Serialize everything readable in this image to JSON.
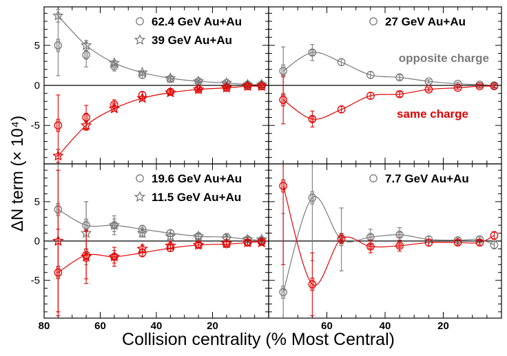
{
  "figure": {
    "ylabel": "ΔN term (× 10⁴)",
    "xlabel": "Collision centrality (% Most Central)"
  },
  "colors": {
    "opposite": "#7a7a7a",
    "same": "#e00000",
    "axis": "#000000"
  },
  "chart_data": [
    {
      "type": "scatter",
      "panel": "top-left",
      "xlim": [
        80,
        0
      ],
      "ylim": [
        -9.8,
        9.8
      ],
      "xticks": [],
      "yticks": [
        "5",
        "0",
        "-5"
      ],
      "legend": [
        {
          "label": "62.4 GeV Au+Au",
          "marker": "circle"
        },
        {
          "label": "39 GeV Au+Au",
          "marker": "star"
        }
      ],
      "annotations": [],
      "series": [
        {
          "charge": "opposite",
          "marker": "circle",
          "x": [
            75,
            65,
            55,
            45,
            35,
            25,
            15,
            7.5,
            2.5
          ],
          "y": [
            5.0,
            3.8,
            2.4,
            1.3,
            0.8,
            0.5,
            0.3,
            0.1,
            0.1
          ],
          "err": [
            3.8,
            1.5,
            0.6,
            0.4,
            0.3,
            0.2,
            0.2,
            0.15,
            0.15
          ]
        },
        {
          "charge": "opposite",
          "marker": "star",
          "x": [
            75,
            65,
            55,
            45,
            35,
            25,
            15,
            7.5,
            2.5
          ],
          "y": [
            8.7,
            5.0,
            2.8,
            1.6,
            0.9,
            0.5,
            0.3,
            0.1,
            0.1
          ],
          "err": [
            0.8,
            0.6,
            0.3,
            0.2,
            0.15,
            0.1,
            0.1,
            0.1,
            0.1
          ]
        },
        {
          "charge": "same",
          "marker": "circle",
          "x": [
            75,
            65,
            55,
            45,
            35,
            25,
            15,
            7.5,
            2.5
          ],
          "y": [
            -5.0,
            -4.0,
            -2.4,
            -1.2,
            -0.8,
            -0.5,
            -0.3,
            -0.1,
            -0.1
          ],
          "err": [
            3.8,
            1.5,
            0.6,
            0.4,
            0.3,
            0.2,
            0.2,
            0.15,
            0.15
          ]
        },
        {
          "charge": "same",
          "marker": "star",
          "x": [
            75,
            65,
            55,
            45,
            35,
            25,
            15,
            7.5,
            2.5
          ],
          "y": [
            -8.8,
            -5.0,
            -2.9,
            -1.6,
            -0.9,
            -0.5,
            -0.3,
            -0.1,
            -0.1
          ],
          "err": [
            0.8,
            0.6,
            0.3,
            0.2,
            0.15,
            0.1,
            0.1,
            0.1,
            0.1
          ]
        }
      ],
      "curves": [
        {
          "charge": "opposite",
          "x": [
            75,
            65,
            55,
            45,
            35,
            25,
            15,
            7.5,
            2.5
          ],
          "y": [
            8.7,
            5.0,
            2.8,
            1.6,
            0.9,
            0.5,
            0.3,
            0.1,
            0.1
          ]
        },
        {
          "charge": "same",
          "x": [
            75,
            65,
            55,
            45,
            35,
            25,
            15,
            7.5,
            2.5
          ],
          "y": [
            -8.8,
            -5.0,
            -2.9,
            -1.6,
            -0.9,
            -0.5,
            -0.3,
            -0.1,
            -0.1
          ]
        }
      ]
    },
    {
      "type": "scatter",
      "panel": "top-right",
      "xlim": [
        80,
        0
      ],
      "ylim": [
        -9.8,
        9.8
      ],
      "xticks": [],
      "yticks": [],
      "legend": [
        {
          "label": "27 GeV Au+Au",
          "marker": "circle"
        }
      ],
      "annotations": [
        {
          "text": "opposite charge",
          "charge": "opposite"
        },
        {
          "text": "same charge",
          "charge": "same"
        }
      ],
      "series": [
        {
          "charge": "opposite",
          "marker": "circle",
          "x": [
            75,
            65,
            55,
            45,
            35,
            25,
            15,
            7.5,
            2.5
          ],
          "y": [
            1.8,
            4.1,
            2.9,
            1.3,
            1.0,
            0.5,
            0.2,
            0.1,
            0.0
          ],
          "err": [
            3.0,
            1.0,
            0.4,
            0.4,
            0.3,
            0.2,
            0.2,
            0.2,
            0.2
          ]
        },
        {
          "charge": "same",
          "marker": "circle",
          "x": [
            75,
            65,
            55,
            45,
            35,
            25,
            15,
            7.5,
            2.5
          ],
          "y": [
            -1.8,
            -4.2,
            -3.0,
            -1.3,
            -1.1,
            -0.5,
            -0.3,
            -0.1,
            -0.1
          ],
          "err": [
            3.0,
            1.0,
            0.4,
            0.4,
            0.3,
            0.2,
            0.2,
            0.2,
            0.2
          ]
        }
      ],
      "curves": [
        {
          "charge": "opposite",
          "x": [
            75,
            65,
            55,
            45,
            35,
            25,
            15,
            7.5,
            2.5
          ],
          "y": [
            1.8,
            4.1,
            2.9,
            1.3,
            1.0,
            0.5,
            0.2,
            0.1,
            0.0
          ]
        },
        {
          "charge": "same",
          "x": [
            75,
            65,
            55,
            45,
            35,
            25,
            15,
            7.5,
            2.5
          ],
          "y": [
            -1.8,
            -4.2,
            -3.0,
            -1.3,
            -1.1,
            -0.5,
            -0.3,
            -0.1,
            -0.1
          ]
        }
      ]
    },
    {
      "type": "scatter",
      "panel": "bottom-left",
      "xlim": [
        80,
        0
      ],
      "ylim": [
        -9.8,
        9.8
      ],
      "xticks": [
        "80",
        "60",
        "40",
        "20"
      ],
      "yticks": [
        "5",
        "0",
        "-5"
      ],
      "legend": [
        {
          "label": "19.6 GeV Au+Au",
          "marker": "circle"
        },
        {
          "label": "11.5 GeV Au+Au",
          "marker": "star"
        }
      ],
      "annotations": [],
      "series": [
        {
          "charge": "opposite",
          "marker": "circle",
          "x": [
            75,
            65,
            55,
            45,
            35,
            25,
            15,
            7.5,
            2.5
          ],
          "y": [
            4.0,
            2.0,
            2.0,
            1.5,
            1.0,
            0.6,
            0.5,
            0.2,
            0.1
          ],
          "err": [
            8.0,
            3.0,
            0.8,
            0.5,
            0.4,
            0.3,
            0.3,
            0.3,
            0.3
          ]
        },
        {
          "charge": "opposite",
          "marker": "star",
          "x": [
            75,
            65,
            55,
            45,
            35,
            25,
            15,
            7.5,
            2.5
          ],
          "y": [
            0.0,
            1.0,
            2.0,
            1.0,
            0.6,
            0.6,
            0.3,
            0.2,
            0.2
          ],
          "err": [
            9.0,
            4.0,
            1.2,
            0.5,
            0.4,
            0.3,
            0.3,
            0.3,
            0.3
          ]
        },
        {
          "charge": "same",
          "marker": "circle",
          "x": [
            75,
            65,
            55,
            45,
            35,
            25,
            15,
            7.5,
            2.5
          ],
          "y": [
            -4.0,
            -1.8,
            -2.0,
            -1.5,
            -0.9,
            -0.5,
            -0.4,
            -0.2,
            -0.1
          ],
          "err": [
            5.5,
            3.0,
            0.8,
            0.5,
            0.4,
            0.3,
            0.3,
            0.3,
            0.3
          ]
        },
        {
          "charge": "same",
          "marker": "star",
          "x": [
            75,
            65,
            55,
            45,
            35,
            25,
            15,
            7.5,
            2.5
          ],
          "y": [
            0.0,
            -2.0,
            -2.0,
            -1.0,
            -0.6,
            -0.5,
            -0.3,
            -0.2,
            -0.2
          ],
          "err": [
            9.0,
            3.4,
            1.2,
            0.5,
            0.4,
            0.3,
            0.3,
            0.3,
            0.3
          ]
        }
      ],
      "curves": [
        {
          "charge": "opposite",
          "x": [
            75,
            65,
            55,
            45,
            35,
            25,
            15,
            7.5,
            2.5
          ],
          "y": [
            4.0,
            2.0,
            2.0,
            1.5,
            1.0,
            0.6,
            0.5,
            0.2,
            0.1
          ]
        },
        {
          "charge": "same",
          "x": [
            75,
            65,
            55,
            45,
            35,
            25,
            15,
            7.5,
            2.5
          ],
          "y": [
            -4.0,
            -1.8,
            -2.0,
            -1.5,
            -0.9,
            -0.5,
            -0.4,
            -0.2,
            -0.1
          ]
        }
      ]
    },
    {
      "type": "scatter",
      "panel": "bottom-right",
      "xlim": [
        80,
        0
      ],
      "ylim": [
        -9.8,
        9.8
      ],
      "xticks": [
        "60",
        "40",
        "20"
      ],
      "yticks": [],
      "legend": [
        {
          "label": "7.7 GeV Au+Au",
          "marker": "circle"
        }
      ],
      "annotations": [],
      "series": [
        {
          "charge": "opposite",
          "marker": "circle",
          "x": [
            75,
            65,
            55,
            45,
            35,
            25,
            15,
            7.5,
            2.5
          ],
          "y": [
            -6.5,
            5.5,
            0.2,
            0.5,
            0.8,
            0.2,
            0.1,
            0.2,
            -0.5
          ],
          "err": [
            10,
            8.0,
            4.0,
            1.0,
            0.9,
            0.4,
            0.3,
            0.3,
            0.5
          ]
        },
        {
          "charge": "same",
          "marker": "circle",
          "x": [
            75,
            65,
            55,
            45,
            35,
            25,
            15,
            7.5,
            2.5
          ],
          "y": [
            7.0,
            -5.5,
            0.3,
            -0.7,
            -0.6,
            -0.2,
            -0.2,
            -0.2,
            0.7
          ],
          "err": [
            10,
            4.0,
            0.6,
            0.8,
            0.7,
            0.4,
            0.3,
            0.3,
            0.5
          ]
        }
      ],
      "curves": [
        {
          "charge": "opposite",
          "x": [
            75,
            65,
            55,
            45,
            35,
            25,
            15,
            7.5,
            2.5
          ],
          "y": [
            -6.5,
            5.5,
            0.2,
            0.5,
            0.8,
            0.2,
            0.1,
            0.2,
            -0.5
          ]
        },
        {
          "charge": "same",
          "x": [
            75,
            65,
            55,
            45,
            35,
            25,
            15,
            7.5,
            2.5
          ],
          "y": [
            7.0,
            -5.5,
            0.3,
            -0.7,
            -0.6,
            -0.2,
            -0.2,
            -0.2,
            0.7
          ]
        }
      ]
    }
  ]
}
